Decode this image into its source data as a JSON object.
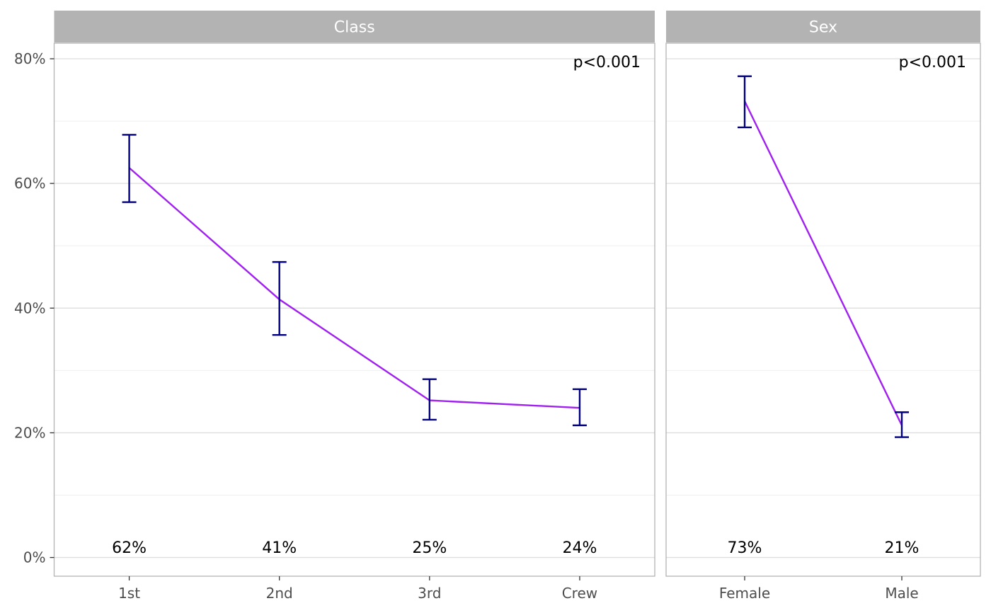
{
  "colors": {
    "line": "#a020f0",
    "errorbar": "#000080",
    "strip_bg": "#b3b3b3",
    "grid_major": "#dedede",
    "grid_minor": "#efefef",
    "panel_border": "#b3b3b3"
  },
  "chart_data": {
    "type": "line",
    "y_axis": {
      "ylim": [
        -0.03,
        0.825
      ],
      "ticks": [
        0,
        0.2,
        0.4,
        0.6,
        0.8
      ],
      "tick_labels": [
        "0%",
        "20%",
        "40%",
        "60%",
        "80%"
      ],
      "minor_ticks": [
        0.1,
        0.3,
        0.5,
        0.7
      ],
      "grid": true
    },
    "panels": [
      {
        "strip": "Class",
        "p_value": "p<0.001",
        "categories": [
          "1st",
          "2nd",
          "3rd",
          "Crew"
        ],
        "values": [
          0.625,
          0.414,
          0.252,
          0.24
        ],
        "lower": [
          0.57,
          0.357,
          0.221,
          0.212
        ],
        "upper": [
          0.678,
          0.474,
          0.286,
          0.27
        ],
        "labels": [
          "62%",
          "41%",
          "25%",
          "24%"
        ]
      },
      {
        "strip": "Sex",
        "p_value": "p<0.001",
        "categories": [
          "Female",
          "Male"
        ],
        "values": [
          0.732,
          0.212
        ],
        "lower": [
          0.69,
          0.193
        ],
        "upper": [
          0.772,
          0.233
        ],
        "labels": [
          "73%",
          "21%"
        ]
      }
    ]
  }
}
